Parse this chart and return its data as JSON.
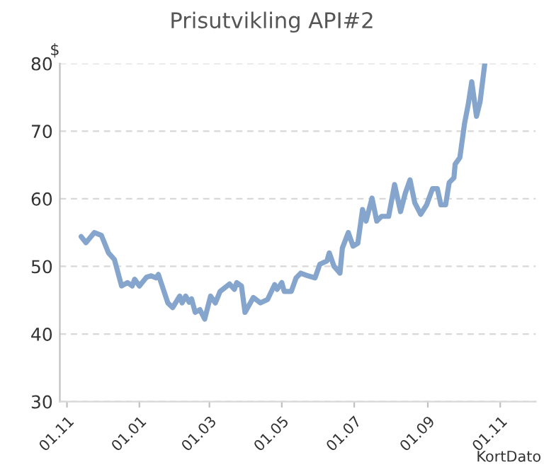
{
  "chart_data": {
    "type": "line",
    "title": "Prisutvikling API#2",
    "ylabel": "$",
    "xlabel": "KortDato",
    "x": [
      "2010-11-13",
      "2010-11-17",
      "2010-11-24",
      "2010-11-30",
      "2010-12-06",
      "2010-12-11",
      "2010-12-17",
      "2010-12-22",
      "2010-12-26",
      "2010-12-28",
      "2011-01-01",
      "2011-01-07",
      "2011-01-11",
      "2011-01-15",
      "2011-01-17",
      "2011-01-25",
      "2011-01-29",
      "2011-02-04",
      "2011-02-06",
      "2011-02-09",
      "2011-02-12",
      "2011-02-14",
      "2011-02-17",
      "2011-02-21",
      "2011-02-25",
      "2011-03-02",
      "2011-03-06",
      "2011-03-10",
      "2011-03-18",
      "2011-03-22",
      "2011-03-24",
      "2011-03-28",
      "2011-03-31",
      "2011-04-07",
      "2011-04-13",
      "2011-04-19",
      "2011-04-25",
      "2011-04-27",
      "2011-05-01",
      "2011-05-03",
      "2011-05-09",
      "2011-05-13",
      "2011-05-17",
      "2011-05-23",
      "2011-05-29",
      "2011-06-02",
      "2011-06-08",
      "2011-06-10",
      "2011-06-14",
      "2011-06-19",
      "2011-06-21",
      "2011-06-26",
      "2011-06-30",
      "2011-07-04",
      "2011-07-08",
      "2011-07-11",
      "2011-07-16",
      "2011-07-20",
      "2011-07-24",
      "2011-07-30",
      "2011-08-04",
      "2011-08-09",
      "2011-08-13",
      "2011-08-17",
      "2011-08-21",
      "2011-08-26",
      "2011-08-31",
      "2011-09-05",
      "2011-09-09",
      "2011-09-12",
      "2011-09-16",
      "2011-09-19",
      "2011-09-23",
      "2011-09-24",
      "2011-09-28",
      "2011-10-02",
      "2011-10-05",
      "2011-10-08",
      "2011-10-12",
      "2011-10-15",
      "2011-10-19"
    ],
    "values": [
      54.4,
      53.5,
      55.0,
      54.6,
      52.0,
      51.0,
      47.1,
      47.6,
      47.1,
      48.1,
      47.1,
      48.4,
      48.6,
      48.3,
      48.8,
      44.6,
      43.9,
      45.6,
      44.6,
      45.6,
      44.7,
      45.2,
      43.2,
      43.6,
      42.2,
      45.6,
      44.6,
      46.3,
      47.4,
      46.6,
      47.6,
      47.1,
      43.2,
      45.4,
      44.6,
      45.1,
      47.3,
      46.6,
      47.6,
      46.3,
      46.3,
      48.3,
      49.0,
      48.6,
      48.3,
      50.3,
      50.8,
      52.0,
      50.0,
      49.0,
      52.7,
      55.0,
      53.0,
      53.4,
      58.4,
      56.7,
      60.1,
      56.7,
      57.4,
      57.4,
      62.1,
      58.1,
      60.8,
      62.8,
      59.4,
      57.7,
      59.1,
      61.5,
      61.5,
      59.1,
      59.1,
      62.4,
      63.1,
      65.1,
      66.1,
      71.2,
      73.9,
      77.3,
      72.2,
      74.3,
      80.0
    ],
    "color": "#86a5cc",
    "xlim": [
      "2010-10-26",
      "2011-12-01"
    ],
    "xticks": [
      {
        "value": "2010-11-01",
        "label": "01.11"
      },
      {
        "value": "2011-01-01",
        "label": "01.01"
      },
      {
        "value": "2011-03-01",
        "label": "01.03"
      },
      {
        "value": "2011-05-01",
        "label": "01.05"
      },
      {
        "value": "2011-07-01",
        "label": "01.07"
      },
      {
        "value": "2011-09-01",
        "label": "01.09"
      },
      {
        "value": "2011-11-01",
        "label": "01.11"
      }
    ],
    "ylim": [
      30,
      80
    ],
    "yticks": [
      30,
      40,
      50,
      60,
      70,
      80
    ],
    "grid": "y",
    "line_style": "solid"
  }
}
